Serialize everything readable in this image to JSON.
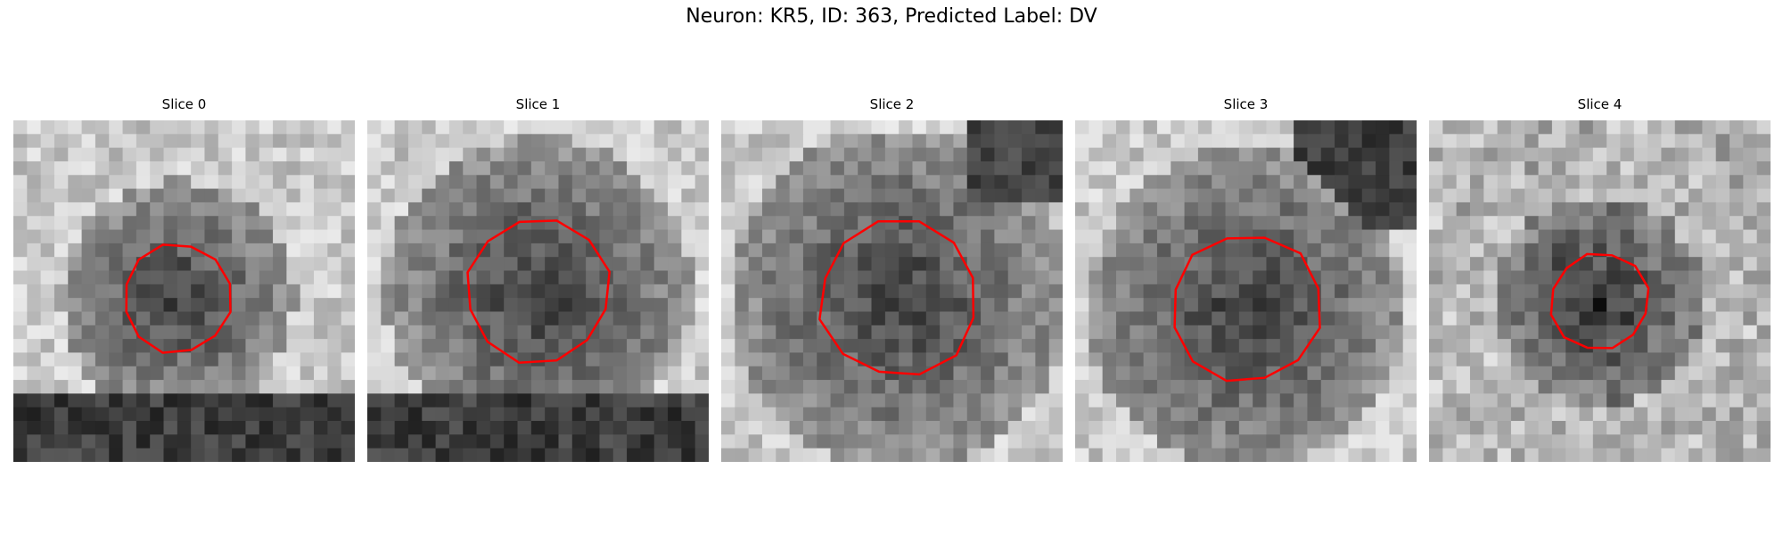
{
  "figure": {
    "title": "Neuron: KR5, ID: 363, Predicted Label: DV",
    "contour_color": "#ff0000",
    "slices": [
      {
        "label": "Slice 0",
        "radius": 0.38,
        "center": [
          0.48,
          0.52
        ],
        "bottom_dark": true
      },
      {
        "label": "Slice 1",
        "radius": 0.5,
        "center": [
          0.5,
          0.5
        ],
        "bottom_dark": true
      },
      {
        "label": "Slice 2",
        "radius": 0.55,
        "center": [
          0.52,
          0.52
        ],
        "bottom_dark": false
      },
      {
        "label": "Slice 3",
        "radius": 0.52,
        "center": [
          0.5,
          0.55
        ],
        "bottom_dark": false
      },
      {
        "label": "Slice 4",
        "radius": 0.34,
        "center": [
          0.5,
          0.53
        ],
        "bottom_dark": false
      }
    ]
  }
}
